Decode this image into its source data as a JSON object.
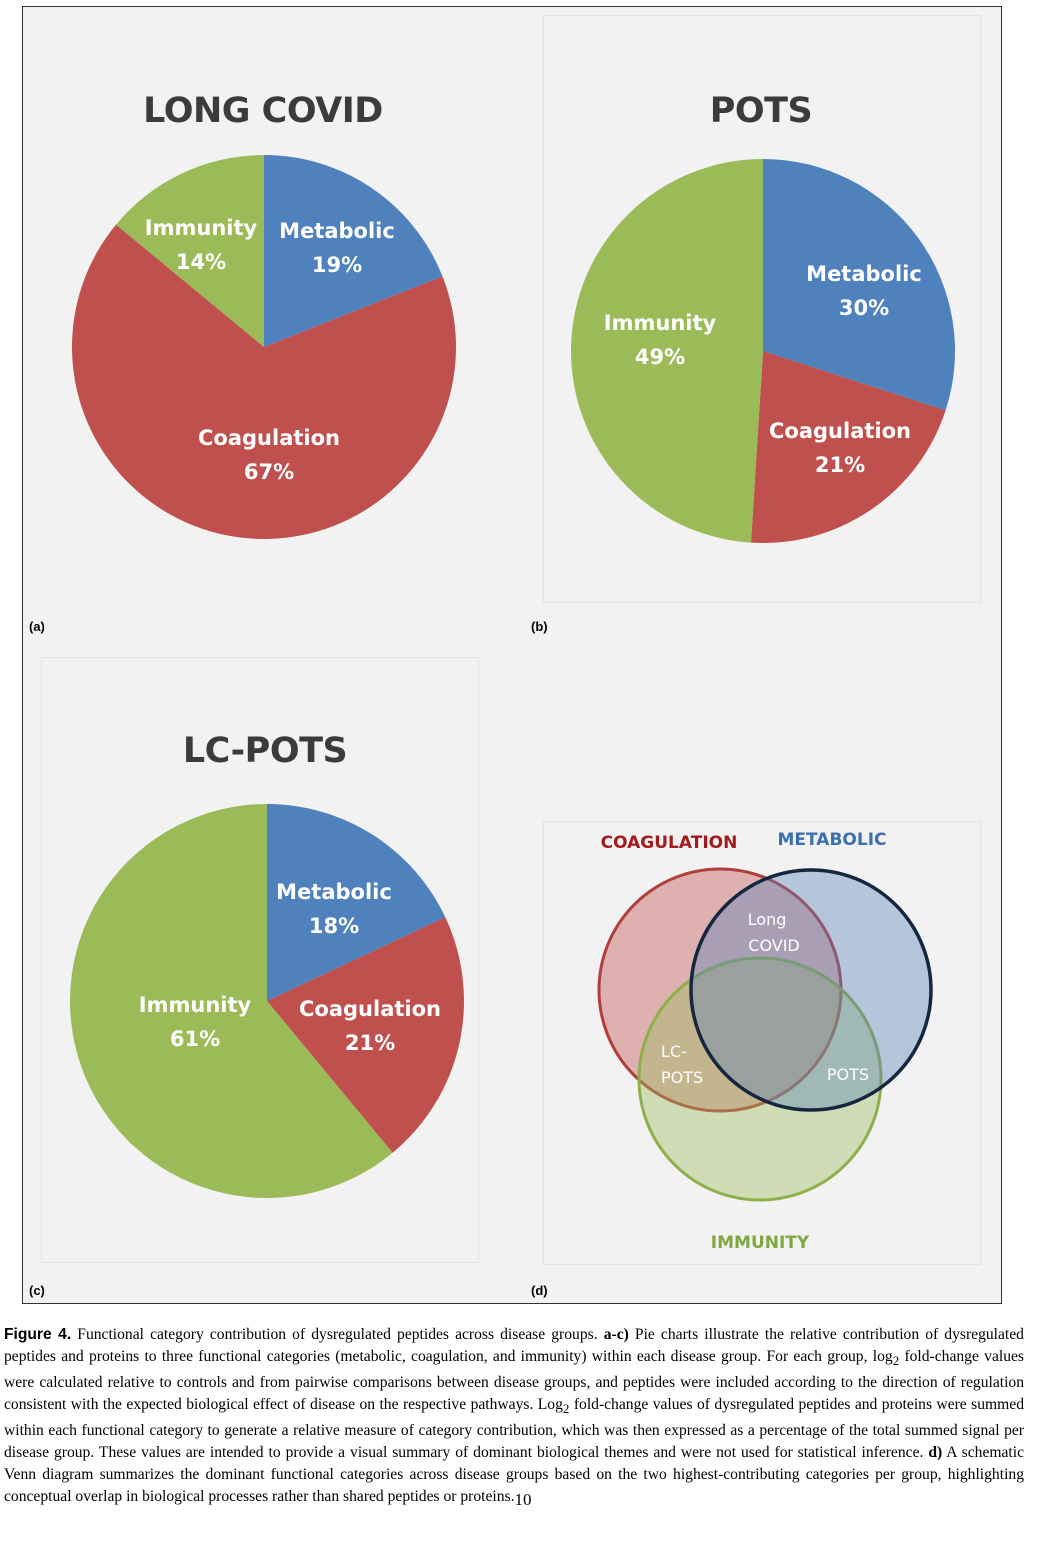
{
  "panels": [
    {
      "label": "(a)"
    },
    {
      "label": "(b)"
    },
    {
      "label": "(c)"
    },
    {
      "label": "(d)"
    }
  ],
  "colors": {
    "metabolic": "#4f81bd",
    "coagulation": "#c0504d",
    "immunity": "#9bbb59"
  },
  "chart_data": [
    {
      "type": "pie",
      "title": "LONG COVID",
      "slices": [
        {
          "name": "Metabolic",
          "value": 19,
          "label": "19%"
        },
        {
          "name": "Coagulation",
          "value": 67,
          "label": "67%"
        },
        {
          "name": "Immunity",
          "value": 14,
          "label": "14%"
        }
      ]
    },
    {
      "type": "pie",
      "title": "POTS",
      "slices": [
        {
          "name": "Metabolic",
          "value": 30,
          "label": "30%"
        },
        {
          "name": "Coagulation",
          "value": 21,
          "label": "21%"
        },
        {
          "name": "Immunity",
          "value": 49,
          "label": "49%"
        }
      ]
    },
    {
      "type": "pie",
      "title": "LC-POTS",
      "slices": [
        {
          "name": "Metabolic",
          "value": 18,
          "label": "18%"
        },
        {
          "name": "Coagulation",
          "value": 21,
          "label": "21%"
        },
        {
          "name": "Immunity",
          "value": 61,
          "label": "61%"
        }
      ]
    }
  ],
  "venn": {
    "sets": {
      "coagulation": {
        "label": "COAGULATION",
        "color": "#c0504d",
        "text_color": "#a31b1b"
      },
      "metabolic": {
        "label": "METABOLIC",
        "color": "#5b82b8",
        "text_color": "#3c6fb0",
        "stroke": "#15263f"
      },
      "immunity": {
        "label": "IMMUNITY",
        "color": "#9bbb59",
        "text_color": "#7fa840"
      }
    },
    "regions": {
      "long_covid": [
        "Long",
        "COVID"
      ],
      "lc_pots": [
        "LC-",
        "POTS"
      ],
      "pots": "POTS"
    }
  },
  "caption": {
    "lead": "Figure 4.",
    "title_text": " Functional category contribution of dysregulated peptides across disease groups. ",
    "ac_label": "a-c)",
    "text_1": " Pie charts illustrate the relative contribution of dysregulated peptides and proteins to three functional categories (metabolic, coagulation, and immunity) within each disease group. For each group, log",
    "sub_2a": "2",
    "text_2": " fold-change values were calculated relative to controls and from pairwise comparisons between disease groups, and peptides were included according to the direction of regulation consistent with the expected biological effect of disease on the respective pathways. Log",
    "sub_2b": "2",
    "text_3": " fold-change values of dysregulated peptides and proteins were summed within each functional category to generate a relative measure of category contribution, which was then expressed as a percentage of the total summed signal per disease group. These values are intended to provide a visual summary of dominant biological themes and were not used for statistical inference. ",
    "d_label": "d)",
    "text_4": " A schematic Venn diagram summarizes the dominant functional categories across disease groups based on the two highest-contributing categories per group, highlighting conceptual overlap in biological processes rather than shared peptides or proteins.",
    "page_number": "10"
  }
}
